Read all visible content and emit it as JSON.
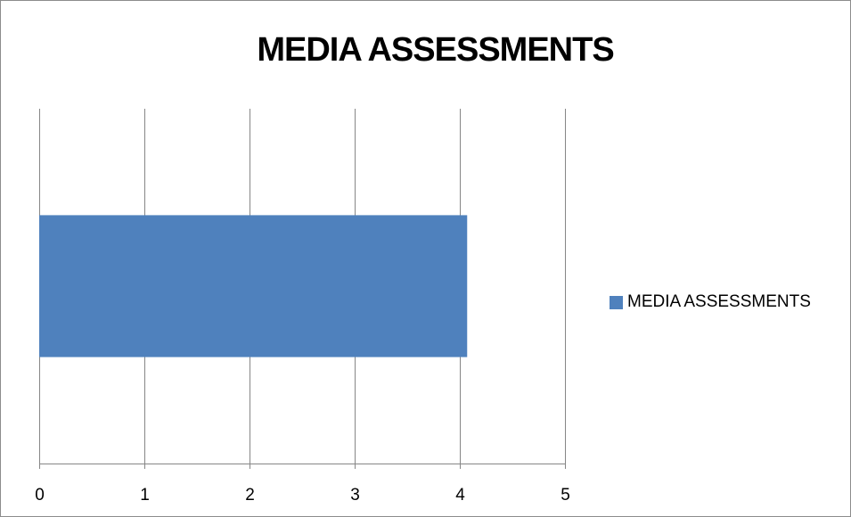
{
  "chart_data": {
    "type": "bar",
    "orientation": "horizontal",
    "title": "MEDIA ASSESSMENTS",
    "xlabel": "",
    "ylabel": "",
    "categories": [
      ""
    ],
    "series": [
      {
        "name": "MEDIA ASSESSMENTS",
        "values": [
          4.07
        ],
        "color": "#4F81BD"
      }
    ],
    "xlim": [
      0,
      5
    ],
    "xticks": [
      "0",
      "1",
      "2",
      "3",
      "4",
      "5"
    ],
    "grid": true,
    "legend": "right"
  }
}
